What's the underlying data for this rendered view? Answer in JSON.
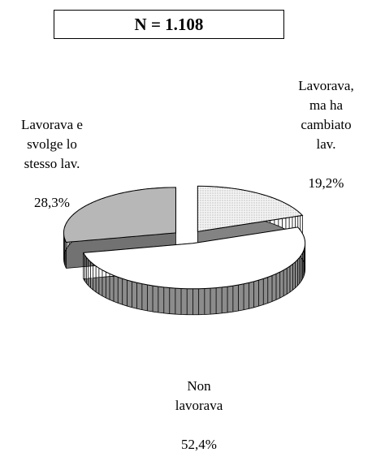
{
  "chart_data": {
    "type": "pie3d",
    "title": "N = 1.108",
    "categories": [
      "Lavorava e\nsvolge lo\nstesso lav.",
      "Lavorava,\nma ha\ncambiato\nlav.",
      "Non\nlavorava"
    ],
    "values": [
      28.3,
      19.2,
      52.4
    ],
    "value_labels": [
      "28,3%",
      "19,2%",
      "52,4%"
    ],
    "colors": [
      "#cfcfcf",
      "#eeeeee",
      "#ffffff"
    ]
  }
}
